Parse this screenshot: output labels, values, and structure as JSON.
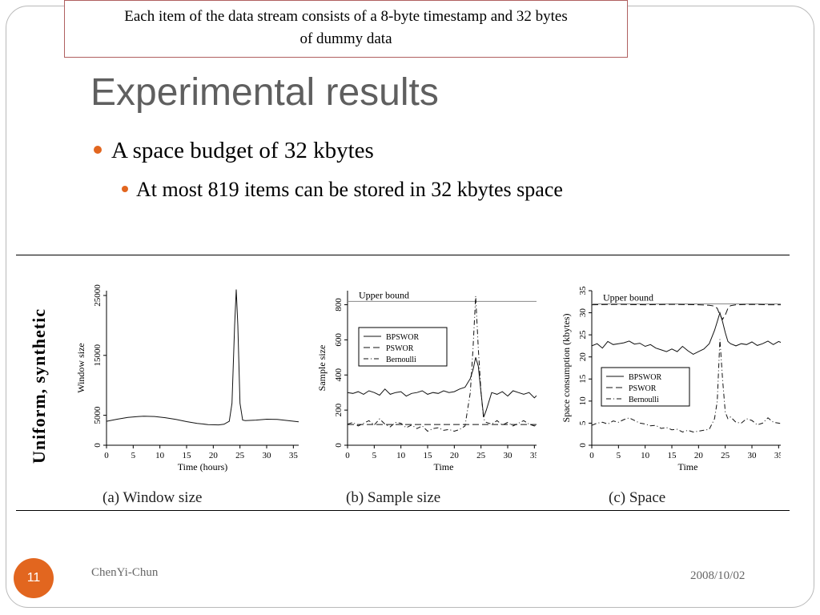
{
  "callout": {
    "line1": "Each item of the data stream consists of a 8-byte timestamp and 32 bytes",
    "line2": "of dummy data"
  },
  "title": "Experimental results",
  "bullets": [
    {
      "text": "A space budget of 32 kbytes"
    },
    {
      "text": "At most 819 items can be stored in 32 kbytes space"
    }
  ],
  "figure": {
    "row_label": "Uniform, synthetic",
    "captions": [
      "(a) Window size",
      "(b) Sample size",
      "(c) Space"
    ]
  },
  "footer": {
    "slide_number": "11",
    "author": "ChenYi-Chun",
    "date": "2008/10/02"
  },
  "colors": {
    "accent": "#e2661f",
    "title": "#5f5f5f"
  },
  "chart_data": [
    {
      "type": "line",
      "xlabel": "Time (hours)",
      "ylabel": "Window size",
      "xticks": [
        "0",
        "5",
        "10",
        "15",
        "20",
        "25",
        "30",
        "35"
      ],
      "yticks": [
        "0",
        "5000",
        "15000",
        "25000"
      ],
      "ytick_values": [
        0,
        5000,
        15000,
        25000
      ],
      "xlim": [
        0,
        36
      ],
      "ylim": [
        0,
        25800
      ],
      "series": [
        {
          "x": [
            0,
            2,
            4,
            6,
            7,
            9,
            11,
            13,
            15,
            17,
            19,
            21,
            22,
            23,
            23.5,
            24,
            24.3,
            24.6,
            25,
            25.5,
            26,
            28,
            30,
            32,
            34,
            36
          ],
          "y": [
            4000,
            4350,
            4650,
            4800,
            4850,
            4800,
            4600,
            4300,
            3950,
            3650,
            3450,
            3400,
            3500,
            4000,
            7000,
            20000,
            26000,
            20000,
            7000,
            4200,
            4100,
            4200,
            4350,
            4300,
            4100,
            3900
          ]
        }
      ]
    },
    {
      "type": "line",
      "xlabel": "Time",
      "ylabel": "Sample size",
      "xticks": [
        "0",
        "5",
        "10",
        "15",
        "20",
        "25",
        "30",
        "35"
      ],
      "yticks": [
        "0",
        "200",
        "400",
        "600",
        "800"
      ],
      "ytick_values": [
        0,
        200,
        400,
        600,
        800
      ],
      "xlim": [
        0,
        36
      ],
      "ylim": [
        0,
        880
      ],
      "annotations": [
        "Upper bound"
      ],
      "upper_bound": 819,
      "legend": {
        "entries": [
          "BPSWOR",
          "PSWOR",
          "Bernoulli"
        ],
        "position": "middle-left"
      },
      "series": [
        {
          "name": "BPSWOR",
          "x": [
            0,
            1,
            2,
            3,
            4,
            5,
            6,
            7,
            8,
            9,
            10,
            11,
            12,
            13,
            14,
            15,
            16,
            17,
            18,
            19,
            20,
            21,
            22,
            23,
            23.5,
            24,
            24.5,
            25,
            25.5,
            26,
            27,
            28,
            29,
            30,
            31,
            32,
            33,
            34,
            35,
            36
          ],
          "y": [
            300,
            295,
            305,
            290,
            310,
            300,
            285,
            320,
            290,
            300,
            305,
            280,
            295,
            300,
            310,
            290,
            300,
            295,
            310,
            300,
            305,
            320,
            330,
            380,
            430,
            500,
            450,
            300,
            160,
            200,
            300,
            290,
            305,
            280,
            310,
            300,
            290,
            300,
            270,
            300
          ]
        },
        {
          "name": "PSWOR",
          "x": [
            0,
            5,
            10,
            15,
            20,
            25,
            30,
            36
          ],
          "y": [
            118,
            118,
            118,
            118,
            118,
            118,
            118,
            118
          ]
        },
        {
          "name": "Bernoulli",
          "x": [
            0,
            1,
            2,
            3,
            4,
            5,
            6,
            7,
            8,
            9,
            10,
            11,
            12,
            13,
            14,
            15,
            16,
            17,
            18,
            19,
            20,
            21,
            22,
            23,
            23.5,
            24,
            24.5,
            25,
            25.5,
            26,
            27,
            28,
            29,
            30,
            31,
            32,
            33,
            34,
            35,
            36
          ],
          "y": [
            120,
            130,
            110,
            125,
            140,
            115,
            150,
            120,
            105,
            130,
            125,
            100,
            115,
            95,
            110,
            80,
            95,
            100,
            85,
            90,
            80,
            90,
            110,
            300,
            550,
            850,
            550,
            300,
            150,
            130,
            120,
            140,
            115,
            130,
            110,
            125,
            140,
            120,
            110,
            125
          ]
        }
      ]
    },
    {
      "type": "line",
      "xlabel": "Time",
      "ylabel": "Space consumption (kbytes)",
      "xticks": [
        "0",
        "5",
        "10",
        "15",
        "20",
        "25",
        "30",
        "35"
      ],
      "yticks": [
        "0",
        "5",
        "10",
        "15",
        "20",
        "25",
        "30",
        "35"
      ],
      "ytick_values": [
        0,
        5,
        10,
        15,
        20,
        25,
        30,
        35
      ],
      "xlim": [
        0,
        36
      ],
      "ylim": [
        0,
        35
      ],
      "annotations": [
        "Upper bound"
      ],
      "upper_bound": 32,
      "legend": {
        "entries": [
          "BPSWOR",
          "PSWOR",
          "Bernoulli"
        ],
        "position": "bottom-left"
      },
      "series": [
        {
          "name": "BPSWOR",
          "x": [
            0,
            1,
            2,
            3,
            4,
            5,
            6,
            7,
            8,
            9,
            10,
            11,
            12,
            13,
            14,
            15,
            16,
            17,
            18,
            19,
            20,
            21,
            22,
            23,
            23.5,
            24,
            24.5,
            25,
            25.5,
            26,
            27,
            28,
            29,
            30,
            31,
            32,
            33,
            34,
            35,
            36
          ],
          "y": [
            22.5,
            23,
            22,
            23.5,
            22.8,
            23,
            23.2,
            23.6,
            22.9,
            23.1,
            22.4,
            22.8,
            22,
            21.6,
            21.2,
            21.8,
            21.2,
            22.4,
            21.4,
            20.6,
            21.2,
            21.8,
            23,
            26,
            28,
            30,
            28,
            25.5,
            23.5,
            23,
            22.5,
            23,
            22.8,
            23.4,
            22.6,
            23,
            23.6,
            22.8,
            23.5,
            23
          ]
        },
        {
          "name": "PSWOR",
          "x": [
            0,
            5,
            10,
            15,
            20,
            22,
            23,
            23.5,
            24,
            24.5,
            25,
            25.5,
            26,
            27,
            30,
            33,
            36
          ],
          "y": [
            31.8,
            31.9,
            31.8,
            31.9,
            31.8,
            31.7,
            31.5,
            31,
            29.5,
            28.5,
            29.5,
            31,
            31.6,
            31.8,
            31.9,
            31.8,
            31.8
          ]
        },
        {
          "name": "Bernoulli",
          "x": [
            0,
            1,
            2,
            3,
            4,
            5,
            6,
            7,
            8,
            9,
            10,
            11,
            12,
            13,
            14,
            15,
            16,
            17,
            18,
            19,
            20,
            21,
            22,
            23,
            23.5,
            24,
            24.5,
            25,
            25.5,
            26,
            27,
            28,
            29,
            30,
            31,
            32,
            33,
            34,
            35,
            36
          ],
          "y": [
            4.5,
            5,
            5.2,
            4.8,
            5.5,
            5.2,
            5.8,
            6.2,
            5.6,
            5,
            4.8,
            4.4,
            4.5,
            3.8,
            4,
            3.5,
            3.6,
            3,
            3.4,
            3,
            3.2,
            3.4,
            3.6,
            6,
            10,
            24,
            15,
            7.5,
            6,
            6.4,
            5.2,
            5,
            6,
            5.6,
            4.6,
            5,
            6.2,
            5.2,
            5,
            4.8
          ]
        }
      ]
    }
  ]
}
